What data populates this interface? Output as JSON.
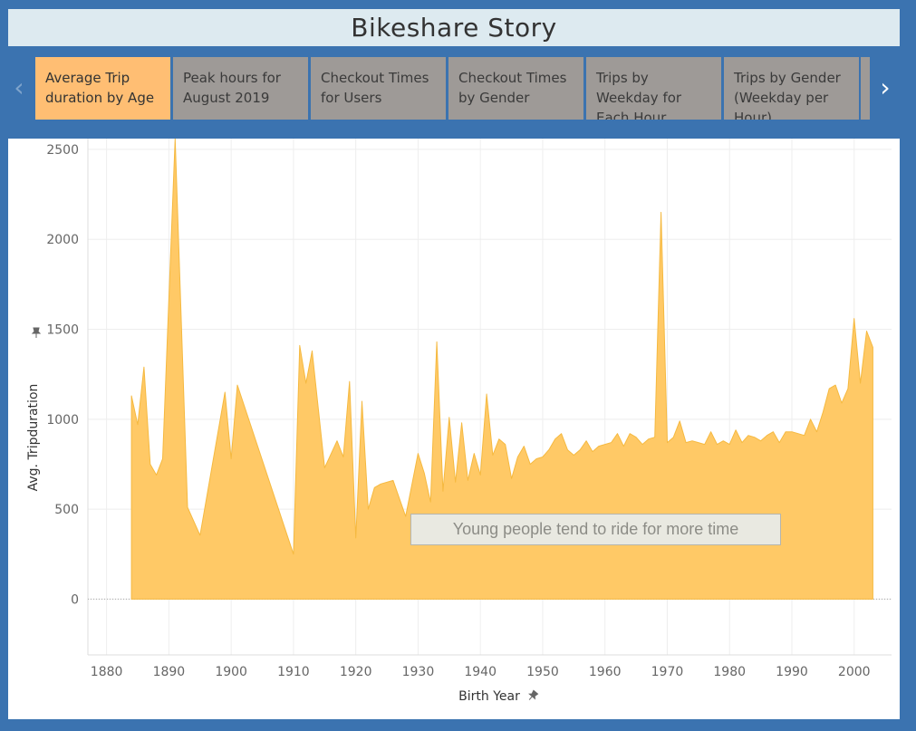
{
  "story": {
    "title": "Bikeshare Story"
  },
  "nav": {
    "prev_icon": "chevron-left-icon",
    "next_icon": "chevron-right-icon",
    "tabs": [
      {
        "label": "Average Trip duration by Age",
        "active": true
      },
      {
        "label": "Peak hours for August 2019",
        "active": false
      },
      {
        "label": "Checkout Times for Users",
        "active": false
      },
      {
        "label": "Checkout Times by Gender",
        "active": false
      },
      {
        "label": "Trips by Weekday for Each Hour",
        "active": false
      },
      {
        "label": "Trips by Gender (Weekday per Hour)",
        "active": false
      }
    ]
  },
  "colors": {
    "frame": "#3b73b0",
    "title_bg": "#ddeaf0",
    "tab_active": "#ffbe73",
    "tab_inactive": "#9e9a97",
    "area_fill": "#ffc966",
    "area_stroke": "#f5b940"
  },
  "chart_data": {
    "type": "area",
    "xlabel": "Birth Year",
    "ylabel": "Avg. Tripduration",
    "xlim": [
      1877,
      2006
    ],
    "ylim": [
      -310,
      2560
    ],
    "xticks": [
      1880,
      1890,
      1900,
      1910,
      1920,
      1930,
      1940,
      1950,
      1960,
      1970,
      1980,
      1990,
      2000
    ],
    "yticks": [
      0,
      500,
      1000,
      1500,
      2000,
      2500
    ],
    "grid": true,
    "x": [
      1884,
      1885,
      1886,
      1887,
      1888,
      1889,
      1891,
      1893,
      1895,
      1899,
      1900,
      1901,
      1910,
      1911,
      1912,
      1913,
      1915,
      1917,
      1918,
      1919,
      1920,
      1921,
      1922,
      1923,
      1924,
      1926,
      1928,
      1930,
      1931,
      1932,
      1933,
      1934,
      1935,
      1936,
      1937,
      1938,
      1939,
      1940,
      1941,
      1942,
      1943,
      1944,
      1945,
      1946,
      1947,
      1948,
      1949,
      1950,
      1951,
      1952,
      1953,
      1954,
      1955,
      1956,
      1957,
      1958,
      1959,
      1960,
      1961,
      1962,
      1963,
      1964,
      1965,
      1966,
      1967,
      1968,
      1969,
      1970,
      1971,
      1972,
      1973,
      1974,
      1975,
      1976,
      1977,
      1978,
      1979,
      1980,
      1981,
      1982,
      1983,
      1984,
      1985,
      1986,
      1987,
      1988,
      1989,
      1990,
      1991,
      1992,
      1993,
      1994,
      1995,
      1996,
      1997,
      1998,
      1999,
      2000,
      2001,
      2002,
      2003
    ],
    "values": [
      1130,
      970,
      1290,
      750,
      690,
      780,
      2560,
      510,
      355,
      1150,
      780,
      1190,
      250,
      1410,
      1200,
      1380,
      730,
      880,
      790,
      1210,
      340,
      1100,
      500,
      620,
      640,
      660,
      460,
      810,
      700,
      540,
      1430,
      600,
      1010,
      650,
      980,
      660,
      810,
      690,
      1140,
      800,
      890,
      860,
      670,
      790,
      850,
      750,
      780,
      790,
      830,
      890,
      920,
      830,
      800,
      830,
      880,
      820,
      850,
      860,
      870,
      920,
      850,
      920,
      900,
      860,
      890,
      900,
      2150,
      870,
      900,
      990,
      870,
      880,
      870,
      860,
      930,
      860,
      880,
      860,
      940,
      870,
      910,
      900,
      880,
      910,
      930,
      870,
      930,
      930,
      920,
      910,
      1000,
      930,
      1040,
      1170,
      1190,
      1090,
      1170,
      1560,
      1200,
      1490,
      1400
    ],
    "annotation": "Young people tend to ride for more time"
  }
}
